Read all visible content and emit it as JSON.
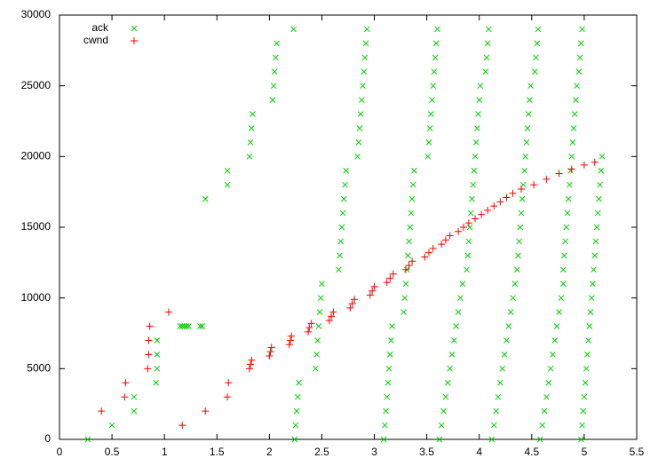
{
  "chart_data": {
    "type": "scatter",
    "xlim": [
      0,
      5.5
    ],
    "xticks": [
      0,
      0.5,
      1,
      1.5,
      2,
      2.5,
      3,
      3.5,
      4,
      4.5,
      5,
      5.5
    ],
    "ylim": [
      0,
      30000
    ],
    "yticks": [
      0,
      5000,
      10000,
      15000,
      20000,
      25000,
      30000
    ],
    "legend": "upper left",
    "series": [
      {
        "name": "ack",
        "color": "#00d000",
        "marker": "x",
        "x": [
          0.27,
          0.5,
          0.71,
          0.71,
          0.92,
          0.93,
          0.93,
          0.93,
          1.15,
          1.17,
          1.19,
          1.21,
          1.23,
          1.34,
          1.36,
          1.39,
          1.6,
          1.6,
          1.81,
          1.82,
          1.83,
          1.84,
          2.03,
          2.04,
          2.05,
          2.06,
          2.07,
          2.23,
          2.24,
          2.25,
          2.26,
          2.27,
          2.28,
          2.44,
          2.45,
          2.46,
          2.47,
          2.48,
          2.49,
          2.5,
          2.66,
          2.67,
          2.68,
          2.69,
          2.7,
          2.71,
          2.72,
          2.73,
          2.84,
          2.85,
          2.86,
          2.87,
          2.88,
          2.89,
          2.9,
          2.91,
          2.92,
          2.93,
          3.09,
          3.1,
          3.11,
          3.12,
          3.13,
          3.14,
          3.15,
          3.16,
          3.17,
          3.28,
          3.29,
          3.3,
          3.31,
          3.32,
          3.33,
          3.34,
          3.35,
          3.36,
          3.37,
          3.38,
          3.51,
          3.52,
          3.53,
          3.54,
          3.55,
          3.56,
          3.57,
          3.58,
          3.59,
          3.6,
          3.62,
          3.64,
          3.66,
          3.68,
          3.7,
          3.72,
          3.74,
          3.76,
          3.78,
          3.8,
          3.82,
          3.84,
          3.88,
          3.89,
          3.9,
          3.91,
          3.92,
          3.93,
          3.94,
          3.95,
          3.96,
          3.97,
          3.98,
          3.99,
          4.0,
          4.01,
          4.06,
          4.07,
          4.08,
          4.09,
          4.12,
          4.14,
          4.16,
          4.18,
          4.2,
          4.22,
          4.24,
          4.26,
          4.28,
          4.3,
          4.32,
          4.34,
          4.36,
          4.37,
          4.38,
          4.39,
          4.4,
          4.41,
          4.42,
          4.43,
          4.44,
          4.45,
          4.46,
          4.47,
          4.48,
          4.49,
          4.53,
          4.54,
          4.55,
          4.56,
          4.58,
          4.6,
          4.62,
          4.64,
          4.66,
          4.68,
          4.7,
          4.72,
          4.74,
          4.76,
          4.78,
          4.8,
          4.8,
          4.81,
          4.82,
          4.83,
          4.84,
          4.85,
          4.86,
          4.87,
          4.88,
          4.89,
          4.9,
          4.91,
          4.92,
          4.93,
          4.95,
          4.96,
          4.97,
          4.98,
          4.97,
          4.98,
          4.99,
          5.0,
          5.01,
          5.02,
          5.03,
          5.04,
          5.05,
          5.06,
          5.07,
          5.08,
          5.09,
          5.1,
          5.11,
          5.12,
          5.13,
          5.14,
          5.15,
          5.16,
          5.17
        ],
        "values": [
          0,
          1000,
          2000,
          3000,
          4000,
          5000,
          6000,
          7000,
          8000,
          8000,
          8000,
          8000,
          8000,
          8000,
          8000,
          17000,
          18000,
          19000,
          20000,
          21000,
          22000,
          23000,
          24000,
          25000,
          26000,
          27000,
          28000,
          29000,
          0,
          1000,
          2000,
          3000,
          4000,
          5000,
          6000,
          7000,
          8000,
          9000,
          10000,
          11000,
          12000,
          13000,
          14000,
          15000,
          16000,
          17000,
          18000,
          19000,
          20000,
          21000,
          22000,
          23000,
          24000,
          25000,
          26000,
          27000,
          28000,
          29000,
          0,
          1000,
          2000,
          3000,
          4000,
          5000,
          6000,
          7000,
          8000,
          9000,
          10000,
          11000,
          12000,
          13000,
          14000,
          15000,
          16000,
          17000,
          18000,
          19000,
          20000,
          21000,
          22000,
          23000,
          24000,
          25000,
          26000,
          27000,
          28000,
          29000,
          0,
          1000,
          2000,
          3000,
          4000,
          5000,
          6000,
          7000,
          8000,
          9000,
          10000,
          11000,
          12000,
          13000,
          14000,
          15000,
          16000,
          17000,
          18000,
          19000,
          20000,
          21000,
          22000,
          23000,
          24000,
          25000,
          26000,
          27000,
          28000,
          29000,
          0,
          1000,
          2000,
          3000,
          4000,
          5000,
          6000,
          7000,
          8000,
          9000,
          10000,
          11000,
          12000,
          13000,
          14000,
          15000,
          16000,
          17000,
          18000,
          19000,
          20000,
          21000,
          22000,
          23000,
          24000,
          25000,
          26000,
          27000,
          28000,
          29000,
          0,
          1000,
          2000,
          3000,
          4000,
          5000,
          6000,
          7000,
          8000,
          9000,
          10000,
          11000,
          12000,
          13000,
          14000,
          15000,
          16000,
          17000,
          18000,
          19000,
          20000,
          21000,
          22000,
          23000,
          24000,
          25000,
          26000,
          27000,
          28000,
          29000,
          0,
          1000,
          2000,
          3000,
          4000,
          5000,
          6000,
          7000,
          8000,
          9000,
          10000,
          11000,
          12000,
          13000,
          14000,
          15000,
          16000,
          17000,
          18000,
          19000,
          20000
        ]
      },
      {
        "name": "cwnd",
        "color": "#ff0000",
        "marker": "+",
        "x": [
          0.4,
          0.62,
          0.63,
          0.84,
          0.85,
          0.85,
          0.86,
          1.04,
          1.17,
          1.39,
          1.6,
          1.61,
          1.81,
          1.82,
          1.83,
          2.0,
          2.01,
          2.02,
          2.19,
          2.2,
          2.21,
          2.37,
          2.38,
          2.4,
          2.57,
          2.59,
          2.61,
          2.77,
          2.79,
          2.81,
          2.96,
          2.98,
          3.0,
          3.12,
          3.15,
          3.18,
          3.3,
          3.33,
          3.36,
          3.48,
          3.52,
          3.56,
          3.64,
          3.68,
          3.72,
          3.8,
          3.85,
          3.9,
          3.96,
          4.02,
          4.08,
          4.14,
          4.2,
          4.26,
          4.32,
          4.4,
          4.52,
          4.64,
          4.76,
          4.88,
          5.0,
          5.1
        ],
        "values": [
          2000,
          3000,
          4000,
          5000,
          6000,
          7000,
          8000,
          9000,
          1000,
          2000,
          3000,
          4000,
          5000,
          5300,
          5600,
          5900,
          6200,
          6500,
          6700,
          7000,
          7300,
          7600,
          7900,
          8200,
          8400,
          8700,
          9000,
          9300,
          9600,
          9900,
          10200,
          10500,
          10800,
          11100,
          11400,
          11700,
          12000,
          12300,
          12600,
          12900,
          13200,
          13500,
          13800,
          14100,
          14400,
          14700,
          15000,
          15300,
          15600,
          15900,
          16200,
          16500,
          16800,
          17100,
          17400,
          17700,
          18000,
          18400,
          18800,
          19100,
          19400,
          19600
        ]
      }
    ]
  }
}
